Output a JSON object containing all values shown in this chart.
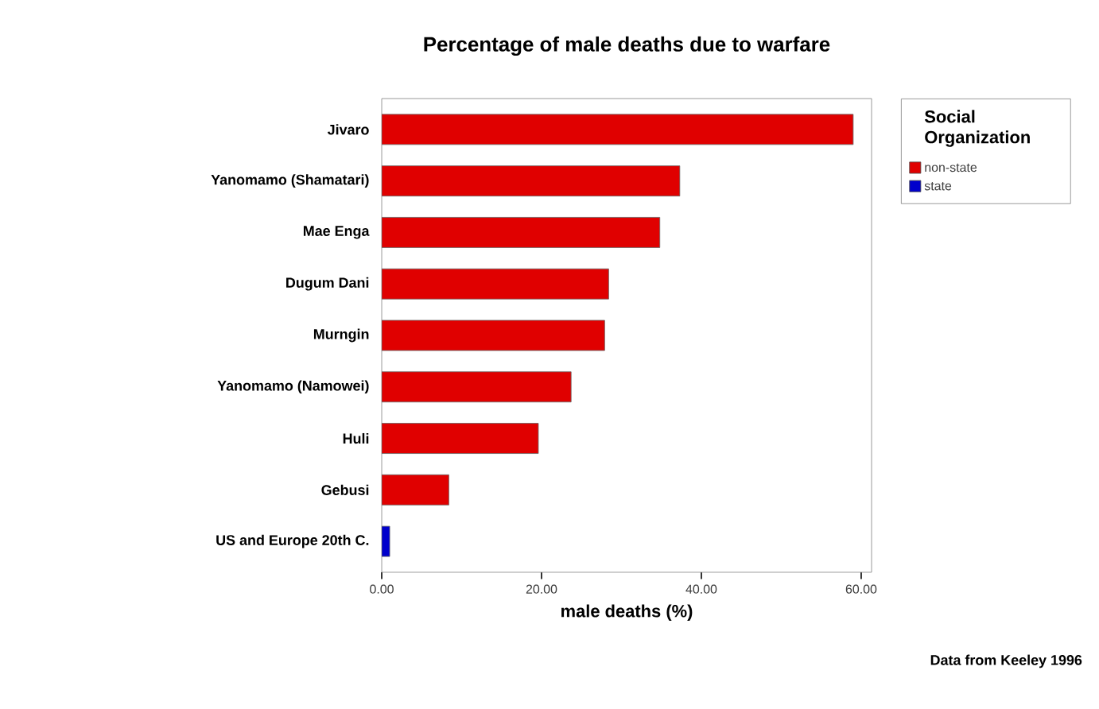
{
  "chart_data": {
    "type": "bar",
    "orientation": "horizontal",
    "title": "Percentage of male deaths due to warfare",
    "xlabel": "male deaths (%)",
    "legend_title": "Social Organization",
    "legend": "right",
    "categories": [
      "Jivaro",
      "Yanomamo (Shamatari)",
      "Mae Enga",
      "Dugum Dani",
      "Murngin",
      "Yanomamo (Namowei)",
      "Huli",
      "Gebusi",
      "US and Europe 20th C."
    ],
    "series": [
      {
        "name": "non-state",
        "color": "#e00000",
        "values": [
          59.0,
          37.3,
          34.8,
          28.4,
          27.9,
          23.7,
          19.6,
          8.4,
          null
        ]
      },
      {
        "name": "state",
        "color": "#0000cc",
        "values": [
          null,
          null,
          null,
          null,
          null,
          null,
          null,
          null,
          1.0
        ]
      }
    ],
    "xlim": [
      0,
      61.3
    ],
    "xticks": [
      {
        "value": 0,
        "label": "0.00"
      },
      {
        "value": 20,
        "label": "20.00"
      },
      {
        "value": 40,
        "label": "40.00"
      },
      {
        "value": 60,
        "label": "60.00"
      }
    ],
    "annotations": [
      "Data from Keeley 1996"
    ]
  }
}
